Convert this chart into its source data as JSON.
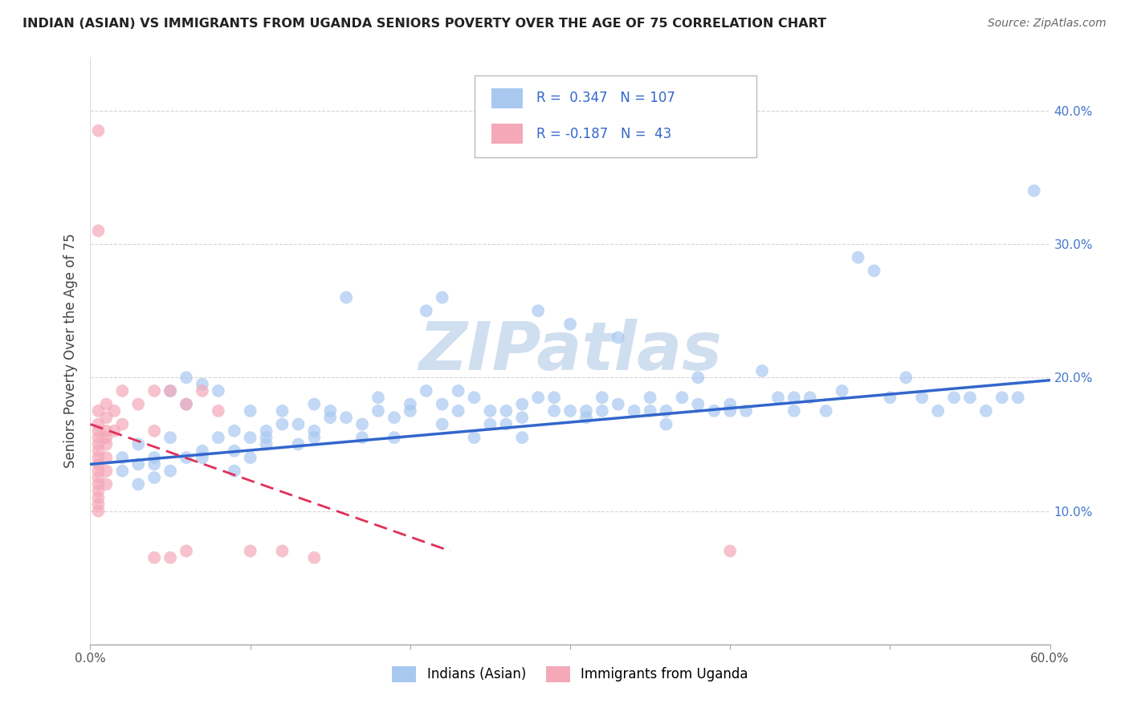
{
  "title": "INDIAN (ASIAN) VS IMMIGRANTS FROM UGANDA SENIORS POVERTY OVER THE AGE OF 75 CORRELATION CHART",
  "source_text": "Source: ZipAtlas.com",
  "ylabel": "Seniors Poverty Over the Age of 75",
  "xlim": [
    0.0,
    0.6
  ],
  "ylim": [
    0.0,
    0.44
  ],
  "xticks": [
    0.0,
    0.1,
    0.2,
    0.3,
    0.4,
    0.5,
    0.6
  ],
  "yticks": [
    0.0,
    0.1,
    0.2,
    0.3,
    0.4
  ],
  "xticklabels": [
    "0.0%",
    "",
    "",
    "",
    "",
    "",
    "60.0%"
  ],
  "yticklabels_right": [
    "",
    "10.0%",
    "20.0%",
    "30.0%",
    "40.0%"
  ],
  "blue_color": "#a8c8f0",
  "pink_color": "#f4a8b8",
  "blue_line_color": "#3366cc",
  "pink_line_color": "#e0305a",
  "watermark": "ZIPatlas",
  "watermark_color": "#d0dff0",
  "blue_scatter": [
    [
      0.02,
      0.13
    ],
    [
      0.02,
      0.14
    ],
    [
      0.03,
      0.15
    ],
    [
      0.03,
      0.12
    ],
    [
      0.03,
      0.135
    ],
    [
      0.04,
      0.135
    ],
    [
      0.04,
      0.125
    ],
    [
      0.04,
      0.14
    ],
    [
      0.05,
      0.19
    ],
    [
      0.05,
      0.13
    ],
    [
      0.05,
      0.155
    ],
    [
      0.06,
      0.2
    ],
    [
      0.06,
      0.18
    ],
    [
      0.06,
      0.14
    ],
    [
      0.07,
      0.195
    ],
    [
      0.07,
      0.145
    ],
    [
      0.07,
      0.14
    ],
    [
      0.08,
      0.19
    ],
    [
      0.08,
      0.155
    ],
    [
      0.09,
      0.145
    ],
    [
      0.09,
      0.13
    ],
    [
      0.09,
      0.16
    ],
    [
      0.1,
      0.175
    ],
    [
      0.1,
      0.14
    ],
    [
      0.1,
      0.155
    ],
    [
      0.11,
      0.16
    ],
    [
      0.11,
      0.155
    ],
    [
      0.11,
      0.15
    ],
    [
      0.12,
      0.175
    ],
    [
      0.12,
      0.165
    ],
    [
      0.13,
      0.165
    ],
    [
      0.13,
      0.15
    ],
    [
      0.14,
      0.18
    ],
    [
      0.14,
      0.16
    ],
    [
      0.14,
      0.155
    ],
    [
      0.15,
      0.175
    ],
    [
      0.15,
      0.17
    ],
    [
      0.16,
      0.26
    ],
    [
      0.16,
      0.17
    ],
    [
      0.17,
      0.165
    ],
    [
      0.17,
      0.155
    ],
    [
      0.18,
      0.185
    ],
    [
      0.18,
      0.175
    ],
    [
      0.19,
      0.155
    ],
    [
      0.19,
      0.17
    ],
    [
      0.2,
      0.18
    ],
    [
      0.2,
      0.175
    ],
    [
      0.21,
      0.25
    ],
    [
      0.21,
      0.19
    ],
    [
      0.22,
      0.26
    ],
    [
      0.22,
      0.165
    ],
    [
      0.22,
      0.18
    ],
    [
      0.23,
      0.19
    ],
    [
      0.23,
      0.175
    ],
    [
      0.24,
      0.185
    ],
    [
      0.24,
      0.155
    ],
    [
      0.25,
      0.175
    ],
    [
      0.25,
      0.165
    ],
    [
      0.26,
      0.175
    ],
    [
      0.26,
      0.165
    ],
    [
      0.27,
      0.18
    ],
    [
      0.27,
      0.17
    ],
    [
      0.27,
      0.155
    ],
    [
      0.28,
      0.25
    ],
    [
      0.28,
      0.185
    ],
    [
      0.29,
      0.185
    ],
    [
      0.29,
      0.175
    ],
    [
      0.3,
      0.24
    ],
    [
      0.3,
      0.175
    ],
    [
      0.31,
      0.17
    ],
    [
      0.31,
      0.175
    ],
    [
      0.32,
      0.185
    ],
    [
      0.32,
      0.175
    ],
    [
      0.33,
      0.23
    ],
    [
      0.33,
      0.18
    ],
    [
      0.34,
      0.175
    ],
    [
      0.35,
      0.185
    ],
    [
      0.35,
      0.175
    ],
    [
      0.36,
      0.175
    ],
    [
      0.36,
      0.165
    ],
    [
      0.37,
      0.185
    ],
    [
      0.38,
      0.2
    ],
    [
      0.38,
      0.18
    ],
    [
      0.39,
      0.175
    ],
    [
      0.4,
      0.18
    ],
    [
      0.4,
      0.175
    ],
    [
      0.41,
      0.175
    ],
    [
      0.42,
      0.205
    ],
    [
      0.43,
      0.185
    ],
    [
      0.44,
      0.185
    ],
    [
      0.44,
      0.175
    ],
    [
      0.45,
      0.185
    ],
    [
      0.46,
      0.175
    ],
    [
      0.47,
      0.19
    ],
    [
      0.48,
      0.29
    ],
    [
      0.49,
      0.28
    ],
    [
      0.5,
      0.185
    ],
    [
      0.51,
      0.2
    ],
    [
      0.52,
      0.185
    ],
    [
      0.53,
      0.175
    ],
    [
      0.54,
      0.185
    ],
    [
      0.55,
      0.185
    ],
    [
      0.56,
      0.175
    ],
    [
      0.57,
      0.185
    ],
    [
      0.58,
      0.185
    ],
    [
      0.59,
      0.34
    ]
  ],
  "pink_scatter": [
    [
      0.005,
      0.385
    ],
    [
      0.005,
      0.31
    ],
    [
      0.005,
      0.175
    ],
    [
      0.005,
      0.165
    ],
    [
      0.005,
      0.16
    ],
    [
      0.005,
      0.155
    ],
    [
      0.005,
      0.15
    ],
    [
      0.005,
      0.145
    ],
    [
      0.005,
      0.14
    ],
    [
      0.005,
      0.135
    ],
    [
      0.005,
      0.13
    ],
    [
      0.005,
      0.125
    ],
    [
      0.005,
      0.12
    ],
    [
      0.005,
      0.115
    ],
    [
      0.005,
      0.11
    ],
    [
      0.005,
      0.105
    ],
    [
      0.005,
      0.1
    ],
    [
      0.01,
      0.18
    ],
    [
      0.01,
      0.17
    ],
    [
      0.01,
      0.16
    ],
    [
      0.01,
      0.155
    ],
    [
      0.01,
      0.15
    ],
    [
      0.01,
      0.14
    ],
    [
      0.01,
      0.13
    ],
    [
      0.01,
      0.12
    ],
    [
      0.015,
      0.175
    ],
    [
      0.015,
      0.16
    ],
    [
      0.02,
      0.19
    ],
    [
      0.02,
      0.165
    ],
    [
      0.03,
      0.18
    ],
    [
      0.04,
      0.19
    ],
    [
      0.04,
      0.16
    ],
    [
      0.05,
      0.19
    ],
    [
      0.06,
      0.18
    ],
    [
      0.07,
      0.19
    ],
    [
      0.08,
      0.175
    ],
    [
      0.1,
      0.07
    ],
    [
      0.12,
      0.07
    ],
    [
      0.14,
      0.065
    ],
    [
      0.04,
      0.065
    ],
    [
      0.05,
      0.065
    ],
    [
      0.06,
      0.07
    ],
    [
      0.4,
      0.07
    ]
  ],
  "blue_trend_x": [
    0.0,
    0.6
  ],
  "blue_trend_y": [
    0.135,
    0.198
  ],
  "pink_trend_x": [
    0.0,
    0.225
  ],
  "pink_trend_y": [
    0.165,
    0.07
  ]
}
